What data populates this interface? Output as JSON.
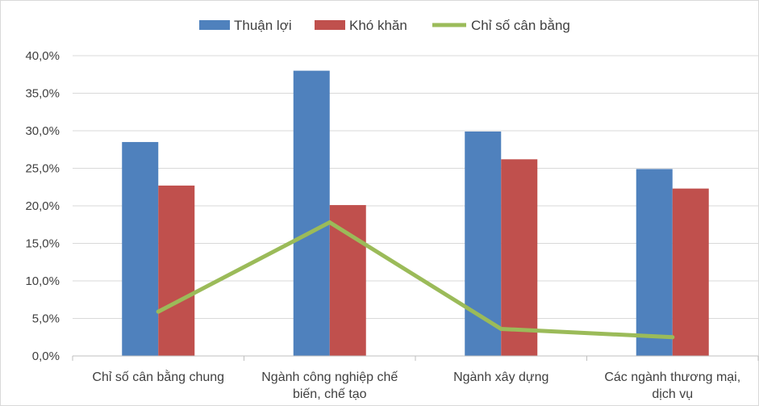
{
  "chart_data": {
    "type": "bar",
    "title": "",
    "xlabel": "",
    "ylabel": "",
    "categories": [
      [
        "Chỉ số cân bằng chung"
      ],
      [
        "Ngành công nghiệp chế",
        "biến, chế tạo"
      ],
      [
        "Ngành xây dựng"
      ],
      [
        "Các ngành thương mại,",
        "dịch vụ"
      ]
    ],
    "series": [
      {
        "name": "Thuận lợi",
        "kind": "bar",
        "color": "#4f81bd",
        "values": [
          28.5,
          38.0,
          29.9,
          24.9
        ]
      },
      {
        "name": "Khó khăn",
        "kind": "bar",
        "color": "#c0504d",
        "values": [
          22.7,
          20.1,
          26.2,
          22.3
        ]
      },
      {
        "name": "Chỉ số cân bằng",
        "kind": "line",
        "color": "#9bbb59",
        "values": [
          5.9,
          17.8,
          3.6,
          2.5
        ]
      }
    ],
    "ylim": [
      0,
      40
    ],
    "yticks": [
      0,
      5,
      10,
      15,
      20,
      25,
      30,
      35,
      40
    ],
    "ytick_labels": [
      "0,0%",
      "5,0%",
      "10,0%",
      "15,0%",
      "20,0%",
      "25,0%",
      "30,0%",
      "35,0%",
      "40,0%"
    ],
    "grid": true,
    "legend_position": "top-center"
  }
}
